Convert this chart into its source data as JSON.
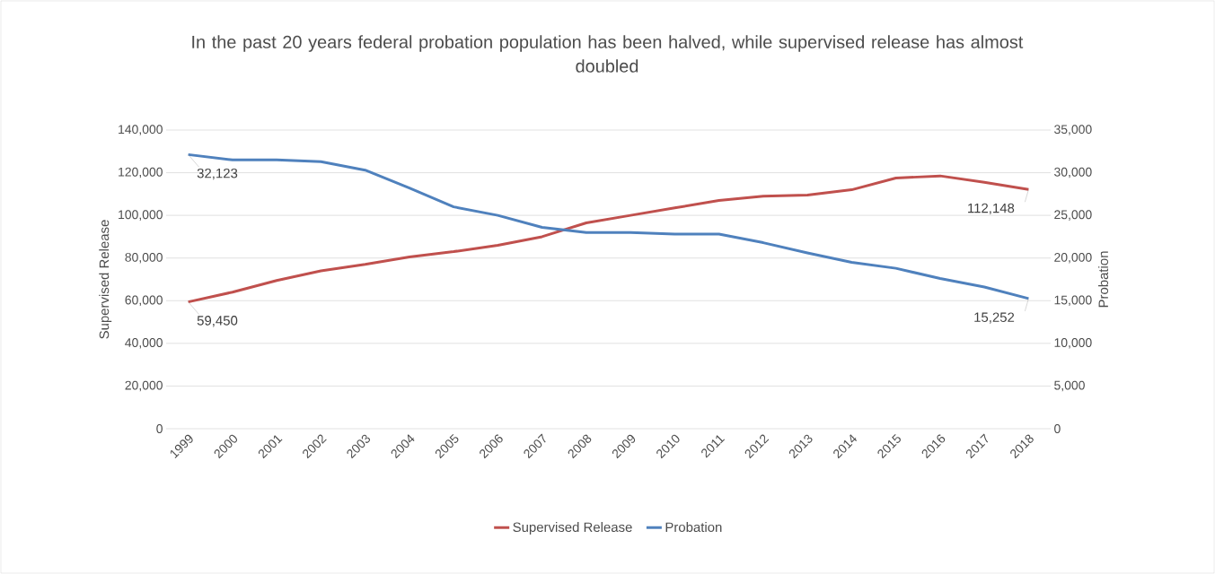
{
  "chart_data": {
    "type": "line",
    "title": "In the past 20 years federal probation population has been halved, while supervised release has almost doubled",
    "ylabel": "Supervised Release",
    "y2label": "Probation",
    "categories": [
      "1999",
      "2000",
      "2001",
      "2002",
      "2003",
      "2004",
      "2005",
      "2006",
      "2007",
      "2008",
      "2009",
      "2010",
      "2011",
      "2012",
      "2013",
      "2014",
      "2015",
      "2016",
      "2017",
      "2018"
    ],
    "series": [
      {
        "name": "Supervised Release",
        "color": "#c0504d",
        "values": [
          59450,
          64000,
          69500,
          74000,
          77000,
          80500,
          83000,
          86000,
          90000,
          96500,
          100000,
          103500,
          107000,
          109000,
          109500,
          112000,
          117500,
          118500,
          115500,
          112148
        ],
        "value_labels": [
          "59,450",
          null,
          null,
          null,
          null,
          null,
          null,
          null,
          null,
          null,
          null,
          null,
          null,
          null,
          null,
          null,
          null,
          null,
          null,
          "112,148"
        ]
      },
      {
        "name": "Probation",
        "color": "#4f81bd",
        "axis": "y2",
        "values": [
          32123,
          31500,
          31500,
          31300,
          30300,
          28200,
          26000,
          25000,
          23600,
          23000,
          23000,
          22800,
          22800,
          21800,
          20600,
          19500,
          18800,
          17600,
          16600,
          15252
        ],
        "value_labels": [
          "32,123",
          null,
          null,
          null,
          null,
          null,
          null,
          null,
          null,
          null,
          null,
          null,
          null,
          null,
          null,
          null,
          null,
          null,
          null,
          "15,252"
        ]
      }
    ],
    "ylim": [
      0,
      140000
    ],
    "yticks": [
      {
        "value": 0,
        "label": "0"
      },
      {
        "value": 20000,
        "label": "20,000"
      },
      {
        "value": 40000,
        "label": "40,000"
      },
      {
        "value": 60000,
        "label": "60,000"
      },
      {
        "value": 80000,
        "label": "80,000"
      },
      {
        "value": 100000,
        "label": "100,000"
      },
      {
        "value": 120000,
        "label": "120,000"
      },
      {
        "value": 140000,
        "label": "140,000"
      }
    ],
    "y2lim": [
      0,
      35000
    ],
    "y2ticks": [
      {
        "value": 0,
        "label": "0"
      },
      {
        "value": 5000,
        "label": "5,000"
      },
      {
        "value": 10000,
        "label": "10,000"
      },
      {
        "value": 15000,
        "label": "15,000"
      },
      {
        "value": 20000,
        "label": "20,000"
      },
      {
        "value": 25000,
        "label": "25,000"
      },
      {
        "value": 30000,
        "label": "30,000"
      },
      {
        "value": 35000,
        "label": "35,000"
      }
    ],
    "grid": "y",
    "legend": "bottom",
    "marker": "none",
    "line_style": "solid"
  }
}
